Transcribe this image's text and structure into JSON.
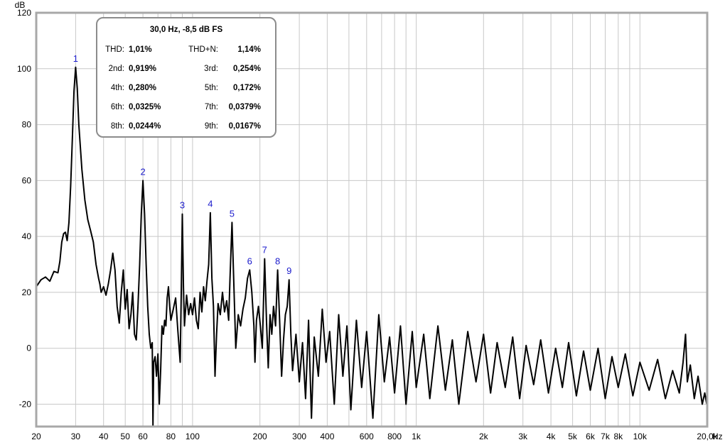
{
  "chart_data": {
    "type": "line",
    "title": "",
    "ylabel": "dB",
    "xlabel": "Hz",
    "xscale": "log",
    "xlim": [
      20,
      20000
    ],
    "ylim": [
      -28,
      120
    ],
    "grid": true,
    "x_tick_labels": [
      {
        "v": 20,
        "t": "20"
      },
      {
        "v": 30,
        "t": "30"
      },
      {
        "v": 40,
        "t": "40"
      },
      {
        "v": 50,
        "t": "50"
      },
      {
        "v": 60,
        "t": "60"
      },
      {
        "v": 80,
        "t": "80"
      },
      {
        "v": 100,
        "t": "100"
      },
      {
        "v": 200,
        "t": "200"
      },
      {
        "v": 300,
        "t": "300"
      },
      {
        "v": 400,
        "t": "400"
      },
      {
        "v": 600,
        "t": "600"
      },
      {
        "v": 800,
        "t": "800"
      },
      {
        "v": 1000,
        "t": "1k"
      },
      {
        "v": 2000,
        "t": "2k"
      },
      {
        "v": 3000,
        "t": "3k"
      },
      {
        "v": 4000,
        "t": "4k"
      },
      {
        "v": 5000,
        "t": "5k"
      },
      {
        "v": 6000,
        "t": "6k"
      },
      {
        "v": 7000,
        "t": "7k"
      },
      {
        "v": 8000,
        "t": "8k"
      },
      {
        "v": 10000,
        "t": "10k"
      },
      {
        "v": 20000,
        "t": "20,0k"
      }
    ],
    "y_tick_labels": [
      {
        "v": 120,
        "t": "120"
      },
      {
        "v": 100,
        "t": "100"
      },
      {
        "v": 80,
        "t": "80"
      },
      {
        "v": 60,
        "t": "60"
      },
      {
        "v": 40,
        "t": "40"
      },
      {
        "v": 20,
        "t": "20"
      },
      {
        "v": 0,
        "t": "0"
      },
      {
        "v": -20,
        "t": "-20"
      }
    ],
    "peaks": [
      {
        "label": "1",
        "freq": 30,
        "db": 100.5
      },
      {
        "label": "2",
        "freq": 60,
        "db": 60
      },
      {
        "label": "3",
        "freq": 90,
        "db": 48
      },
      {
        "label": "4",
        "freq": 120,
        "db": 48.5
      },
      {
        "label": "5",
        "freq": 150,
        "db": 45
      },
      {
        "label": "6",
        "freq": 180,
        "db": 28
      },
      {
        "label": "7",
        "freq": 210,
        "db": 32
      },
      {
        "label": "8",
        "freq": 240,
        "db": 28
      },
      {
        "label": "9",
        "freq": 270,
        "db": 24.5
      }
    ],
    "series": [
      {
        "points": [
          [
            20,
            22
          ],
          [
            21,
            24.5
          ],
          [
            22,
            25.5
          ],
          [
            23,
            24
          ],
          [
            24,
            27.5
          ],
          [
            25,
            27
          ],
          [
            25.5,
            31
          ],
          [
            26,
            38
          ],
          [
            26.5,
            41
          ],
          [
            27,
            41.5
          ],
          [
            27.5,
            38.5
          ],
          [
            28,
            45
          ],
          [
            28.5,
            58
          ],
          [
            29,
            75
          ],
          [
            29.5,
            92
          ],
          [
            30,
            100.5
          ],
          [
            30.5,
            93
          ],
          [
            31,
            80
          ],
          [
            32,
            64
          ],
          [
            33,
            53
          ],
          [
            34,
            46
          ],
          [
            35,
            42
          ],
          [
            36,
            38
          ],
          [
            37,
            30
          ],
          [
            38,
            25
          ],
          [
            38.5,
            23
          ],
          [
            39,
            20
          ],
          [
            40,
            22
          ],
          [
            41,
            19
          ],
          [
            42,
            23
          ],
          [
            43,
            28
          ],
          [
            44,
            34
          ],
          [
            45,
            28
          ],
          [
            46,
            15
          ],
          [
            47,
            9
          ],
          [
            48,
            20
          ],
          [
            49,
            28
          ],
          [
            50,
            14
          ],
          [
            51,
            21
          ],
          [
            52,
            7
          ],
          [
            53,
            12
          ],
          [
            54,
            20
          ],
          [
            55,
            5
          ],
          [
            56,
            3
          ],
          [
            57,
            15
          ],
          [
            58,
            30
          ],
          [
            59,
            48
          ],
          [
            60,
            60
          ],
          [
            61,
            48
          ],
          [
            62,
            30
          ],
          [
            63,
            15
          ],
          [
            64,
            5
          ],
          [
            65,
            0
          ],
          [
            66,
            2
          ],
          [
            66.5,
            -28
          ],
          [
            67,
            -5
          ],
          [
            68,
            -3
          ],
          [
            69,
            -10
          ],
          [
            70,
            -2
          ],
          [
            71,
            -20
          ],
          [
            72,
            -8
          ],
          [
            73,
            8
          ],
          [
            74,
            5
          ],
          [
            75,
            10
          ],
          [
            76,
            8
          ],
          [
            77,
            18
          ],
          [
            78,
            22
          ],
          [
            79,
            15
          ],
          [
            80,
            10
          ],
          [
            82,
            14
          ],
          [
            84,
            18
          ],
          [
            86,
            6
          ],
          [
            88,
            -5
          ],
          [
            89,
            20
          ],
          [
            90,
            48
          ],
          [
            91,
            22
          ],
          [
            92,
            8
          ],
          [
            94,
            19
          ],
          [
            96,
            12
          ],
          [
            98,
            16
          ],
          [
            100,
            12
          ],
          [
            102,
            18
          ],
          [
            104,
            10
          ],
          [
            106,
            7
          ],
          [
            108,
            20
          ],
          [
            110,
            13
          ],
          [
            112,
            22
          ],
          [
            114,
            17
          ],
          [
            116,
            24
          ],
          [
            118,
            30
          ],
          [
            120,
            48.5
          ],
          [
            122,
            25
          ],
          [
            124,
            15
          ],
          [
            126,
            -10
          ],
          [
            128,
            5
          ],
          [
            130,
            16
          ],
          [
            133,
            12
          ],
          [
            136,
            20
          ],
          [
            139,
            13
          ],
          [
            142,
            17
          ],
          [
            145,
            10
          ],
          [
            147,
            25
          ],
          [
            150,
            45
          ],
          [
            153,
            22
          ],
          [
            156,
            0
          ],
          [
            160,
            12
          ],
          [
            164,
            8
          ],
          [
            168,
            14
          ],
          [
            172,
            18
          ],
          [
            176,
            25
          ],
          [
            180,
            28
          ],
          [
            184,
            20
          ],
          [
            188,
            8
          ],
          [
            190,
            -5
          ],
          [
            193,
            10
          ],
          [
            197,
            15
          ],
          [
            201,
            8
          ],
          [
            205,
            0
          ],
          [
            210,
            32
          ],
          [
            214,
            10
          ],
          [
            218,
            -7
          ],
          [
            222,
            12
          ],
          [
            226,
            5
          ],
          [
            230,
            15
          ],
          [
            235,
            8
          ],
          [
            240,
            28
          ],
          [
            245,
            10
          ],
          [
            250,
            -10
          ],
          [
            255,
            3
          ],
          [
            260,
            12
          ],
          [
            265,
            15
          ],
          [
            270,
            24.5
          ],
          [
            275,
            5
          ],
          [
            280,
            -8
          ],
          [
            290,
            5
          ],
          [
            300,
            -12
          ],
          [
            310,
            2
          ],
          [
            320,
            -18
          ],
          [
            330,
            10
          ],
          [
            340,
            -25
          ],
          [
            350,
            4
          ],
          [
            365,
            -10
          ],
          [
            380,
            14
          ],
          [
            395,
            -5
          ],
          [
            410,
            6
          ],
          [
            430,
            -20
          ],
          [
            450,
            12
          ],
          [
            470,
            -10
          ],
          [
            490,
            8
          ],
          [
            510,
            -22
          ],
          [
            540,
            10
          ],
          [
            570,
            -14
          ],
          [
            600,
            6
          ],
          [
            640,
            -25
          ],
          [
            680,
            12
          ],
          [
            720,
            -12
          ],
          [
            760,
            4
          ],
          [
            800,
            -16
          ],
          [
            850,
            8
          ],
          [
            900,
            -20
          ],
          [
            960,
            6
          ],
          [
            1000,
            -14
          ],
          [
            1080,
            5
          ],
          [
            1150,
            -18
          ],
          [
            1250,
            8
          ],
          [
            1350,
            -15
          ],
          [
            1450,
            3
          ],
          [
            1550,
            -20
          ],
          [
            1700,
            6
          ],
          [
            1850,
            -12
          ],
          [
            2000,
            5
          ],
          [
            2150,
            -16
          ],
          [
            2300,
            2
          ],
          [
            2500,
            -14
          ],
          [
            2700,
            4
          ],
          [
            2900,
            -18
          ],
          [
            3100,
            1
          ],
          [
            3350,
            -13
          ],
          [
            3600,
            3
          ],
          [
            3900,
            -16
          ],
          [
            4200,
            0
          ],
          [
            4500,
            -14
          ],
          [
            4800,
            2
          ],
          [
            5200,
            -17
          ],
          [
            5600,
            -1
          ],
          [
            6000,
            -15
          ],
          [
            6500,
            0
          ],
          [
            7000,
            -18
          ],
          [
            7500,
            -3
          ],
          [
            8000,
            -14
          ],
          [
            8600,
            -2
          ],
          [
            9300,
            -17
          ],
          [
            10000,
            -5
          ],
          [
            11000,
            -15
          ],
          [
            12000,
            -4
          ],
          [
            13000,
            -18
          ],
          [
            14000,
            -8
          ],
          [
            15000,
            -16
          ],
          [
            15600,
            -5
          ],
          [
            16000,
            5
          ],
          [
            16300,
            -12
          ],
          [
            16800,
            -6
          ],
          [
            17500,
            -18
          ],
          [
            18200,
            -10
          ],
          [
            19000,
            -20
          ],
          [
            19500,
            -16
          ],
          [
            19900,
            -20
          ],
          [
            20000,
            4
          ]
        ]
      }
    ]
  },
  "info_box": {
    "title": "30,0 Hz, -8,5 dB FS",
    "rows": [
      {
        "l1": "THD:",
        "v1": "1,01%",
        "l2": "THD+N:",
        "v2": "1,14%"
      },
      {
        "l1": "2nd:",
        "v1": "0,919%",
        "l2": "3rd:",
        "v2": "0,254%"
      },
      {
        "l1": "4th:",
        "v1": "0,280%",
        "l2": "5th:",
        "v2": "0,172%"
      },
      {
        "l1": "6th:",
        "v1": "0,0325%",
        "l2": "7th:",
        "v2": "0,0379%"
      },
      {
        "l1": "8th:",
        "v1": "0,0244%",
        "l2": "9th:",
        "v2": "0,0167%"
      }
    ]
  },
  "colors": {
    "grid": "#c8c8c8",
    "frame": "#a8a8a8",
    "trace": "#000000",
    "peak_label": "#1a1acc"
  }
}
